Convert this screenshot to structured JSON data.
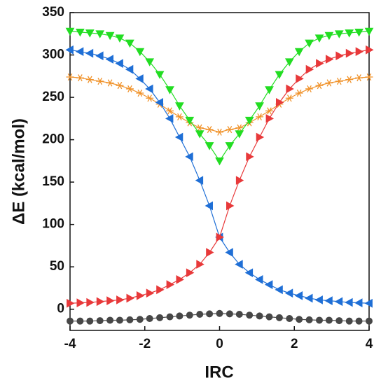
{
  "chart_data": {
    "type": "line",
    "x_label": "IRC",
    "y_label": "ΔE (kcal/mol)",
    "x": [
      -4,
      -3.73,
      -3.47,
      -3.2,
      -2.93,
      -2.67,
      -2.4,
      -2.13,
      -1.87,
      -1.6,
      -1.33,
      -1.07,
      -0.8,
      -0.53,
      -0.27,
      0,
      0.27,
      0.53,
      0.8,
      1.07,
      1.33,
      1.6,
      1.87,
      2.13,
      2.4,
      2.67,
      2.93,
      3.2,
      3.47,
      3.73,
      4
    ],
    "series": [
      {
        "color": "#474747",
        "marker": "circle",
        "values": [
          -14,
          -14,
          -14,
          -13.5,
          -13,
          -13,
          -12.5,
          -12,
          -11,
          -10,
          -9,
          -8,
          -7,
          -6,
          -5.5,
          -5,
          -5.5,
          -6,
          -7,
          -8,
          -9,
          -10,
          -11,
          -12,
          -12.5,
          -13,
          -13,
          -13.5,
          -14,
          -14,
          -14
        ]
      },
      {
        "color": "#f0922a",
        "marker": "asterisk",
        "values": [
          274,
          273,
          271,
          269,
          267,
          264,
          260,
          255,
          249,
          242,
          234,
          227,
          220,
          214,
          212,
          209,
          212,
          214,
          220,
          227,
          234,
          242,
          249,
          255,
          260,
          264,
          267,
          269,
          271,
          273,
          274
        ]
      },
      {
        "color": "#22dd22",
        "marker": "triangle-down",
        "values": [
          328,
          327,
          326,
          325,
          323,
          320,
          314,
          304,
          292,
          277,
          259,
          240,
          223,
          207,
          193,
          175,
          193,
          207,
          223,
          240,
          259,
          277,
          292,
          304,
          314,
          320,
          323,
          325,
          326,
          327,
          328
        ]
      },
      {
        "color": "#1f6fd6",
        "marker": "triangle-left",
        "values": [
          306,
          304,
          302,
          299,
          295,
          290,
          283,
          272,
          260,
          244,
          225,
          203,
          180,
          152,
          122,
          85,
          67,
          53,
          43,
          35,
          29,
          23,
          19,
          16,
          13,
          11,
          10,
          9,
          8,
          7.5,
          7
        ]
      },
      {
        "color": "#e8393a",
        "marker": "triangle-right",
        "values": [
          7,
          7.5,
          8,
          9,
          10,
          11,
          13,
          16,
          19,
          23,
          29,
          35,
          43,
          53,
          67,
          85,
          122,
          152,
          180,
          203,
          225,
          244,
          260,
          272,
          283,
          290,
          295,
          299,
          302,
          304,
          306
        ]
      }
    ],
    "xlim": [
      -4,
      4
    ],
    "xticks": [
      -4,
      -2,
      0,
      2,
      4
    ],
    "ylim": [
      -25,
      350
    ],
    "yticks": [
      0,
      50,
      100,
      150,
      200,
      250,
      300,
      350
    ]
  }
}
